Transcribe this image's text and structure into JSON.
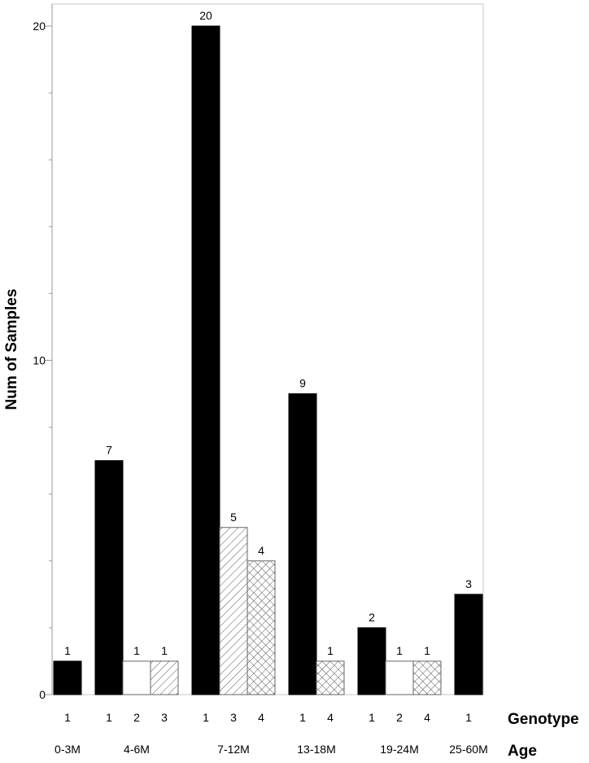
{
  "chart_data": {
    "type": "bar",
    "ylabel": "Num of Samples",
    "ylim": [
      0,
      20.5
    ],
    "yticks": [
      0,
      10,
      20
    ],
    "y_minor_step": 2,
    "row_labels": {
      "genotype": "Genotype",
      "age": "Age"
    },
    "groups": [
      {
        "age": "0-3M",
        "bars": [
          {
            "genotype": "1",
            "value": 1
          }
        ]
      },
      {
        "age": "4-6M",
        "bars": [
          {
            "genotype": "1",
            "value": 7
          },
          {
            "genotype": "2",
            "value": 1
          },
          {
            "genotype": "3",
            "value": 1
          }
        ]
      },
      {
        "age": "7-12M",
        "bars": [
          {
            "genotype": "1",
            "value": 20
          },
          {
            "genotype": "3",
            "value": 5
          },
          {
            "genotype": "4",
            "value": 4
          }
        ]
      },
      {
        "age": "13-18M",
        "bars": [
          {
            "genotype": "1",
            "value": 9
          },
          {
            "genotype": "4",
            "value": 1
          }
        ]
      },
      {
        "age": "19-24M",
        "bars": [
          {
            "genotype": "1",
            "value": 2
          },
          {
            "genotype": "2",
            "value": 1
          },
          {
            "genotype": "4",
            "value": 1
          }
        ]
      },
      {
        "age": "25-60M",
        "bars": [
          {
            "genotype": "1",
            "value": 3
          }
        ]
      }
    ],
    "genotype_fills": {
      "1": "solid-black",
      "2": "white",
      "3": "diagonal-hatch",
      "4": "crosshatch"
    },
    "colors": {
      "bar": "#000000",
      "frame": "#c8c8c8",
      "hatch": "#555555"
    },
    "grid": false,
    "legend": "none"
  }
}
